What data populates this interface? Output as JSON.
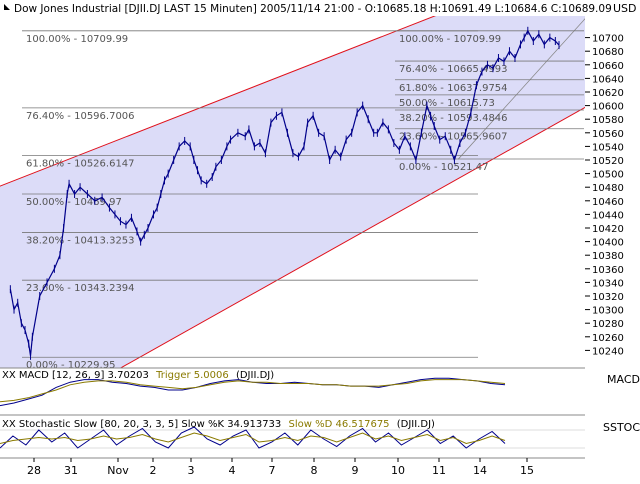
{
  "header": {
    "title": "Dow Jones Industrial [DJII.DJ LAST 15 Minuten] 2005/11/14 21:00 - O:10685.18 H:10691.49 L:10684.6 C:10689.09",
    "usd_label": "USD"
  },
  "colors": {
    "background": "#ffffff",
    "channel_fill": "#dcdcf8",
    "channel_line": "#e0101a",
    "price": "#00008b",
    "fib_line": "#777777",
    "fib_text": "#555555",
    "grid": "#d0d0d0",
    "macd_trigger_text": "#8a7a00",
    "stoch_slow_text": "#8a7a00"
  },
  "chart_data": [
    {
      "type": "line",
      "title": "Dow Jones Industrial [DJII.DJ LAST 15 Minuten] 2005/11/14 21:00 - O:10685.18 H:10691.49 L:10684.6 C:10689.09",
      "xlabel": "",
      "ylabel": "USD",
      "x_ticks": [
        "28",
        "31",
        "Nov",
        "2",
        "3",
        "4",
        "7",
        "8",
        "9",
        "10",
        "11",
        "14",
        "15"
      ],
      "y_ticks": [
        10240,
        10260,
        10280,
        10300,
        10320,
        10340,
        10360,
        10380,
        10400,
        10420,
        10440,
        10460,
        10480,
        10500,
        10520,
        10540,
        10560,
        10580,
        10600,
        10620,
        10640,
        10660,
        10680,
        10700
      ],
      "ylim": [
        10220,
        10720
      ],
      "x_range": [
        27.5,
        15.3
      ],
      "grid": false,
      "series": [
        {
          "values": [
            [
              28.0,
              10330
            ],
            [
              28.1,
              10300
            ],
            [
              28.2,
              10310
            ],
            [
              28.3,
              10280
            ],
            [
              28.4,
              10270
            ],
            [
              28.5,
              10250
            ],
            [
              28.55,
              10232
            ],
            [
              28.6,
              10260
            ],
            [
              28.8,
              10320
            ],
            [
              29.0,
              10340
            ],
            [
              29.2,
              10360
            ],
            [
              29.35,
              10380
            ],
            [
              29.45,
              10420
            ],
            [
              29.55,
              10470
            ],
            [
              29.6,
              10485
            ],
            [
              29.75,
              10470
            ],
            [
              29.9,
              10480
            ],
            [
              30.1,
              10470
            ],
            [
              30.3,
              10460
            ],
            [
              30.5,
              10465
            ],
            [
              30.7,
              10450
            ],
            [
              30.85,
              10440
            ],
            [
              31.0,
              10430
            ],
            [
              31.15,
              10425
            ],
            [
              31.3,
              10435
            ],
            [
              31.45,
              10415
            ],
            [
              31.55,
              10400
            ],
            [
              31.65,
              10410
            ],
            [
              31.75,
              10420
            ],
            [
              31.9,
              10440
            ],
            [
              32.0,
              10450
            ],
            [
              32.1,
              10470
            ],
            [
              32.2,
              10490
            ],
            [
              32.3,
              10500
            ],
            [
              32.45,
              10520
            ],
            [
              32.6,
              10540
            ],
            [
              32.75,
              10548
            ],
            [
              32.9,
              10540
            ],
            [
              33.0,
              10520
            ],
            [
              33.1,
              10505
            ],
            [
              33.2,
              10490
            ],
            [
              33.35,
              10485
            ],
            [
              33.5,
              10495
            ],
            [
              33.6,
              10510
            ],
            [
              33.75,
              10520
            ],
            [
              33.9,
              10540
            ],
            [
              34.0,
              10550
            ],
            [
              34.2,
              10560
            ],
            [
              34.4,
              10555
            ],
            [
              34.5,
              10565
            ],
            [
              34.65,
              10540
            ],
            [
              34.8,
              10545
            ],
            [
              34.95,
              10530
            ],
            [
              35.1,
              10575
            ],
            [
              35.25,
              10585
            ],
            [
              35.4,
              10590
            ],
            [
              35.55,
              10560
            ],
            [
              35.7,
              10530
            ],
            [
              35.85,
              10525
            ],
            [
              36.0,
              10540
            ],
            [
              36.1,
              10575
            ],
            [
              36.25,
              10585
            ],
            [
              36.4,
              10560
            ],
            [
              36.55,
              10555
            ],
            [
              36.7,
              10520
            ],
            [
              36.85,
              10535
            ],
            [
              37.0,
              10525
            ],
            [
              37.15,
              10550
            ],
            [
              37.3,
              10560
            ],
            [
              37.45,
              10590
            ],
            [
              37.6,
              10600
            ],
            [
              37.75,
              10580
            ],
            [
              37.9,
              10560
            ],
            [
              38.0,
              10560
            ],
            [
              38.15,
              10575
            ],
            [
              38.3,
              10565
            ],
            [
              38.45,
              10545
            ],
            [
              38.6,
              10535
            ],
            [
              38.75,
              10555
            ],
            [
              38.9,
              10540
            ],
            [
              39.05,
              10520
            ],
            [
              39.2,
              10560
            ],
            [
              39.35,
              10600
            ],
            [
              39.45,
              10585
            ],
            [
              39.55,
              10570
            ],
            [
              39.7,
              10550
            ],
            [
              39.85,
              10555
            ],
            [
              40.0,
              10535
            ],
            [
              40.1,
              10520
            ],
            [
              40.25,
              10545
            ],
            [
              40.4,
              10560
            ],
            [
              40.55,
              10590
            ],
            [
              40.7,
              10630
            ],
            [
              40.85,
              10650
            ],
            [
              41.0,
              10660
            ],
            [
              41.15,
              10655
            ],
            [
              41.3,
              10670
            ],
            [
              41.45,
              10665
            ],
            [
              41.6,
              10680
            ],
            [
              41.75,
              10670
            ],
            [
              41.9,
              10690
            ],
            [
              42.0,
              10700
            ],
            [
              42.1,
              10710
            ],
            [
              42.25,
              10695
            ],
            [
              42.4,
              10705
            ],
            [
              42.55,
              10690
            ],
            [
              42.7,
              10700
            ],
            [
              42.85,
              10695
            ],
            [
              42.95,
              10689
            ]
          ]
        }
      ],
      "fibonacci_left": [
        {
          "label": "100.00% - 10709.99",
          "value": 10709.99
        },
        {
          "label": "76.40% - 10596.7006",
          "value": 10596.7006
        },
        {
          "label": "61.80% - 10526.6147",
          "value": 10526.6147
        },
        {
          "label": "50.00% - 10469.97",
          "value": 10469.97
        },
        {
          "label": "38.20% - 10413.3253",
          "value": 10413.3253
        },
        {
          "label": "23.60% - 10343.2394",
          "value": 10343.2394
        },
        {
          "label": "0.00% - 10229.95",
          "value": 10229.95
        }
      ],
      "fibonacci_right": [
        {
          "label": "100.00% - 10709.99",
          "value": 10709.99
        },
        {
          "label": "76.40% - 10665.4993",
          "value": 10665.4993
        },
        {
          "label": "61.80% - 10637.9754",
          "value": 10637.9754
        },
        {
          "label": "50.00% - 10615.73",
          "value": 10615.73
        },
        {
          "label": "38.20% - 10593.4846",
          "value": 10593.4846
        },
        {
          "label": "23.60% - 10565.9607",
          "value": 10565.9607
        },
        {
          "label": "0.00% - 10521.47",
          "value": 10521.47
        }
      ],
      "channel": {
        "lower_start": [
          27.5,
          10108
        ],
        "lower_end": [
          45.3,
          10647
        ],
        "upper_start": [
          27.5,
          10477
        ],
        "upper_end": [
          45.3,
          10853
        ]
      }
    },
    {
      "type": "line",
      "title": "XX MACD [12, 26, 9] 3.70203 Trigger 5.0006 (DJII.DJ)",
      "panel_label": "MACD",
      "macd_label": "XX MACD [12, 26, 9] 3.70203",
      "trigger_label": "Trigger 5.0006",
      "symbol_label": "(DJII.DJ)",
      "series": [
        {
          "values": [
            -12,
            -10,
            -7,
            -4,
            2,
            6,
            8,
            8,
            6,
            5,
            3,
            2,
            0,
            0,
            2,
            5,
            7,
            8,
            6,
            5,
            5,
            6,
            5,
            4,
            4,
            3,
            3,
            2,
            4,
            6,
            8,
            9,
            9,
            8,
            7,
            5,
            4
          ]
        },
        {
          "values": [
            -9,
            -8,
            -6,
            -3,
            0,
            4,
            6,
            7,
            7,
            6,
            4,
            3,
            2,
            1,
            2,
            4,
            6,
            7,
            6,
            6,
            5,
            5,
            5,
            4,
            4,
            3,
            3,
            3,
            4,
            5,
            7,
            8,
            8,
            8,
            7,
            6,
            5
          ]
        }
      ]
    },
    {
      "type": "line",
      "title": "XX Stochastic Slow [80, 20, 3, 3, 5] Slow %K 34.913733 Slow %D 46.517675 (DJII.DJ)",
      "panel_label": "SSTOC",
      "stoch_label": "XX Stochastic Slow [80, 20, 3, 3, 5] Slow %K 34.913733",
      "slow_label": "Slow %D 46.517675",
      "symbol_label": "(DJII.DJ)",
      "series": [
        {
          "values": [
            20,
            60,
            30,
            80,
            40,
            70,
            20,
            50,
            80,
            30,
            60,
            85,
            40,
            20,
            70,
            90,
            50,
            30,
            60,
            80,
            20,
            40,
            70,
            30,
            80,
            50,
            25,
            60,
            85,
            40,
            70,
            30,
            55,
            80,
            35,
            60,
            20,
            50,
            75,
            35
          ]
        },
        {
          "values": [
            35,
            45,
            50,
            55,
            50,
            55,
            45,
            50,
            60,
            50,
            55,
            65,
            50,
            40,
            55,
            70,
            60,
            45,
            55,
            65,
            40,
            45,
            55,
            45,
            60,
            55,
            40,
            55,
            70,
            50,
            60,
            45,
            55,
            65,
            45,
            55,
            35,
            45,
            60,
            45
          ]
        }
      ]
    }
  ]
}
